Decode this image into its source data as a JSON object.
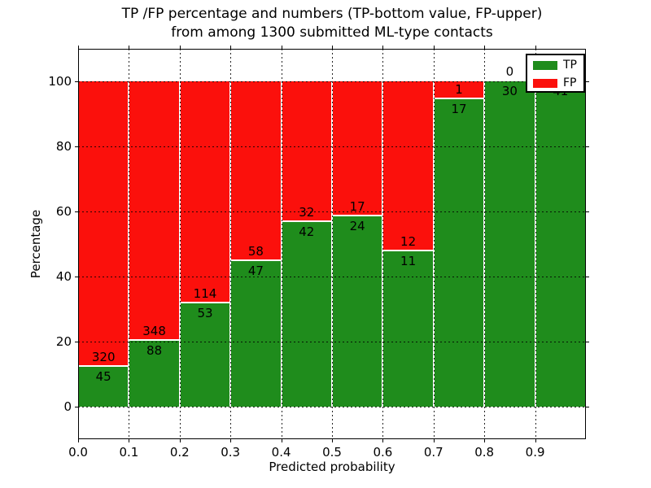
{
  "title": {
    "line1": "TP /FP percentage and numbers (TP-bottom value, FP-upper)",
    "line2": "from among 1300 submitted ML-type contacts"
  },
  "axes": {
    "xlabel": "Predicted probability",
    "ylabel": "Percentage",
    "yticks": [
      0,
      20,
      40,
      60,
      80,
      100
    ],
    "xticks": [
      "0.0",
      "0.1",
      "0.2",
      "0.3",
      "0.4",
      "0.5",
      "0.6",
      "0.7",
      "0.8",
      "0.9"
    ],
    "ylim": [
      -10,
      110
    ],
    "xlim": [
      0.0,
      1.0
    ]
  },
  "legend": {
    "items": [
      {
        "label": "TP",
        "color": "#1f8c1c"
      },
      {
        "label": "FP",
        "color": "#fb100c"
      }
    ]
  },
  "colors": {
    "tp_green": "#1f8c1c",
    "fp_red": "#fb100c",
    "grid": "#000000",
    "background": "#ffffff"
  },
  "chart_data": {
    "type": "bar",
    "stacked": true,
    "normalized_to_percent": true,
    "title": "TP /FP percentage and numbers (TP-bottom value, FP-upper) from among 1300 submitted ML-type contacts",
    "xlabel": "Predicted probability",
    "ylabel": "Percentage",
    "categories": [
      "0.0",
      "0.1",
      "0.2",
      "0.3",
      "0.4",
      "0.5",
      "0.6",
      "0.7",
      "0.8",
      "0.9"
    ],
    "bin_width": 0.1,
    "series": [
      {
        "name": "TP",
        "color": "#1f8c1c",
        "counts": [
          45,
          88,
          53,
          47,
          42,
          24,
          11,
          17,
          30,
          41
        ]
      },
      {
        "name": "FP",
        "color": "#fb100c",
        "counts": [
          320,
          348,
          114,
          58,
          32,
          17,
          12,
          1,
          0,
          0
        ]
      }
    ],
    "tp_percent_of_bin": [
      12.3,
      20.2,
      31.7,
      44.8,
      56.8,
      58.5,
      47.8,
      94.4,
      100.0,
      100.0
    ],
    "total_contacts": 1300,
    "ylim": [
      -10,
      110
    ],
    "grid": true,
    "legend_position": "upper right"
  }
}
